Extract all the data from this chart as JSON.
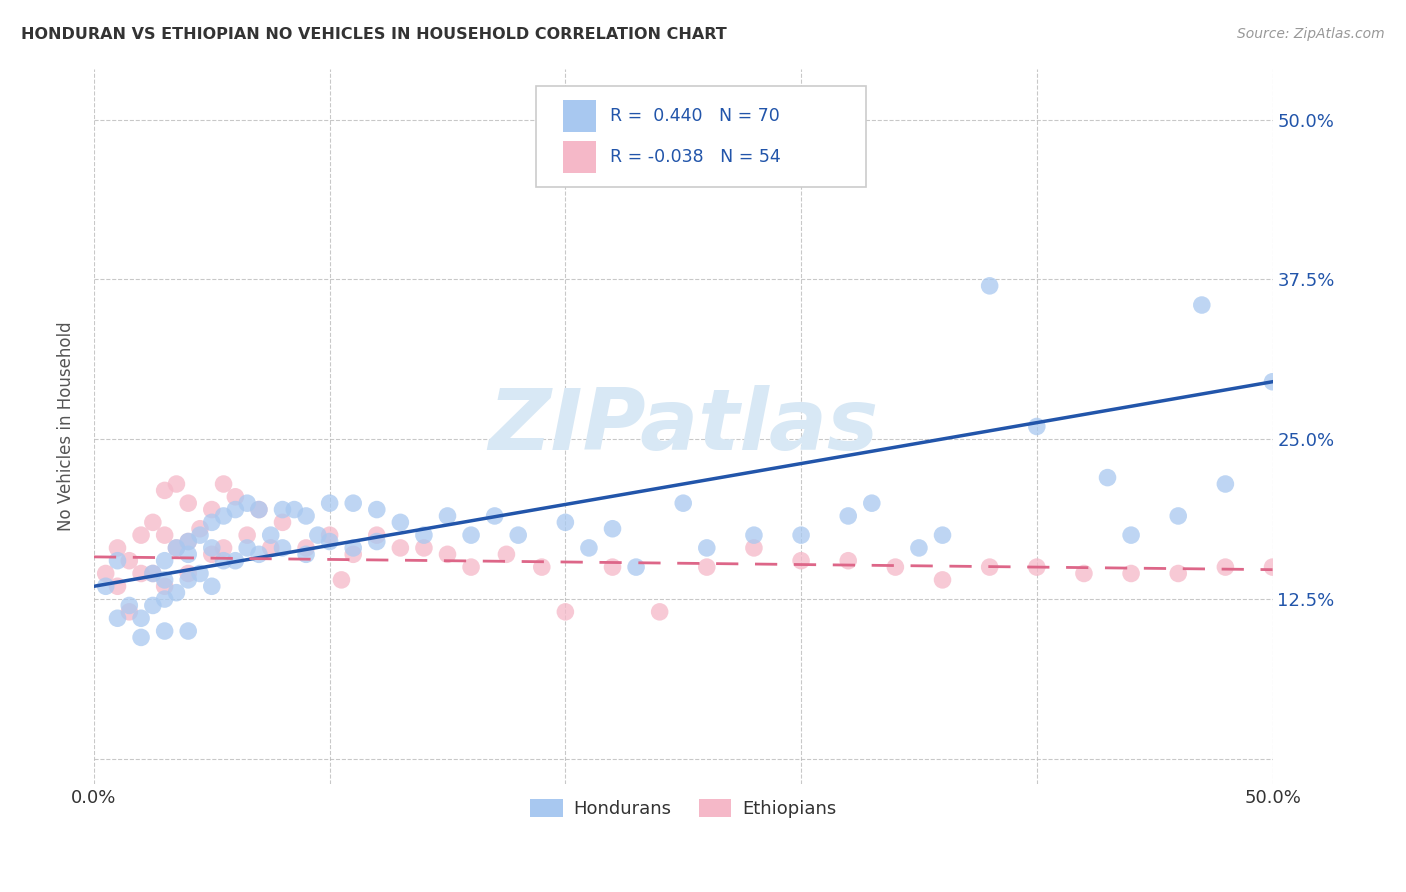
{
  "title": "HONDURAN VS ETHIOPIAN NO VEHICLES IN HOUSEHOLD CORRELATION CHART",
  "source": "Source: ZipAtlas.com",
  "ylabel": "No Vehicles in Household",
  "xlim": [
    0.0,
    0.5
  ],
  "ylim": [
    -0.02,
    0.54
  ],
  "blue_color": "#A8C8F0",
  "pink_color": "#F5B8C8",
  "blue_line_color": "#2255AA",
  "pink_line_color": "#DD6688",
  "watermark_color": "#D8E8F5",
  "background_color": "#FFFFFF",
  "grid_color": "#BBBBBB",
  "title_color": "#333333",
  "legend_text_color": "#2255AA",
  "legend_label_color": "#222222",
  "blue_scatter_x": [
    0.005,
    0.01,
    0.01,
    0.015,
    0.02,
    0.02,
    0.025,
    0.025,
    0.03,
    0.03,
    0.03,
    0.03,
    0.035,
    0.035,
    0.04,
    0.04,
    0.04,
    0.04,
    0.045,
    0.045,
    0.05,
    0.05,
    0.05,
    0.055,
    0.055,
    0.06,
    0.06,
    0.065,
    0.065,
    0.07,
    0.07,
    0.075,
    0.08,
    0.08,
    0.085,
    0.09,
    0.09,
    0.095,
    0.1,
    0.1,
    0.11,
    0.11,
    0.12,
    0.12,
    0.13,
    0.14,
    0.15,
    0.16,
    0.17,
    0.18,
    0.2,
    0.21,
    0.22,
    0.23,
    0.25,
    0.26,
    0.28,
    0.3,
    0.32,
    0.33,
    0.35,
    0.36,
    0.38,
    0.4,
    0.43,
    0.44,
    0.46,
    0.47,
    0.48,
    0.5
  ],
  "blue_scatter_y": [
    0.135,
    0.155,
    0.11,
    0.12,
    0.11,
    0.095,
    0.145,
    0.12,
    0.155,
    0.14,
    0.125,
    0.1,
    0.165,
    0.13,
    0.17,
    0.16,
    0.14,
    0.1,
    0.175,
    0.145,
    0.185,
    0.165,
    0.135,
    0.19,
    0.155,
    0.195,
    0.155,
    0.2,
    0.165,
    0.195,
    0.16,
    0.175,
    0.195,
    0.165,
    0.195,
    0.19,
    0.16,
    0.175,
    0.2,
    0.17,
    0.2,
    0.165,
    0.195,
    0.17,
    0.185,
    0.175,
    0.19,
    0.175,
    0.19,
    0.175,
    0.185,
    0.165,
    0.18,
    0.15,
    0.2,
    0.165,
    0.175,
    0.175,
    0.19,
    0.2,
    0.165,
    0.175,
    0.37,
    0.26,
    0.22,
    0.175,
    0.19,
    0.355,
    0.215,
    0.295
  ],
  "pink_scatter_x": [
    0.005,
    0.01,
    0.01,
    0.015,
    0.015,
    0.02,
    0.02,
    0.025,
    0.025,
    0.03,
    0.03,
    0.03,
    0.035,
    0.035,
    0.04,
    0.04,
    0.04,
    0.045,
    0.05,
    0.05,
    0.055,
    0.055,
    0.06,
    0.065,
    0.07,
    0.075,
    0.08,
    0.09,
    0.1,
    0.105,
    0.11,
    0.12,
    0.13,
    0.14,
    0.15,
    0.16,
    0.175,
    0.19,
    0.2,
    0.22,
    0.24,
    0.26,
    0.28,
    0.3,
    0.32,
    0.34,
    0.36,
    0.38,
    0.4,
    0.42,
    0.44,
    0.46,
    0.48,
    0.5
  ],
  "pink_scatter_y": [
    0.145,
    0.165,
    0.135,
    0.155,
    0.115,
    0.175,
    0.145,
    0.185,
    0.145,
    0.21,
    0.175,
    0.135,
    0.215,
    0.165,
    0.2,
    0.17,
    0.145,
    0.18,
    0.195,
    0.16,
    0.215,
    0.165,
    0.205,
    0.175,
    0.195,
    0.165,
    0.185,
    0.165,
    0.175,
    0.14,
    0.16,
    0.175,
    0.165,
    0.165,
    0.16,
    0.15,
    0.16,
    0.15,
    0.115,
    0.15,
    0.115,
    0.15,
    0.165,
    0.155,
    0.155,
    0.15,
    0.14,
    0.15,
    0.15,
    0.145,
    0.145,
    0.145,
    0.15,
    0.15
  ],
  "blue_line_x0": 0.0,
  "blue_line_y0": 0.135,
  "blue_line_x1": 0.5,
  "blue_line_y1": 0.295,
  "pink_line_x0": 0.0,
  "pink_line_y0": 0.158,
  "pink_line_x1": 0.5,
  "pink_line_y1": 0.148
}
